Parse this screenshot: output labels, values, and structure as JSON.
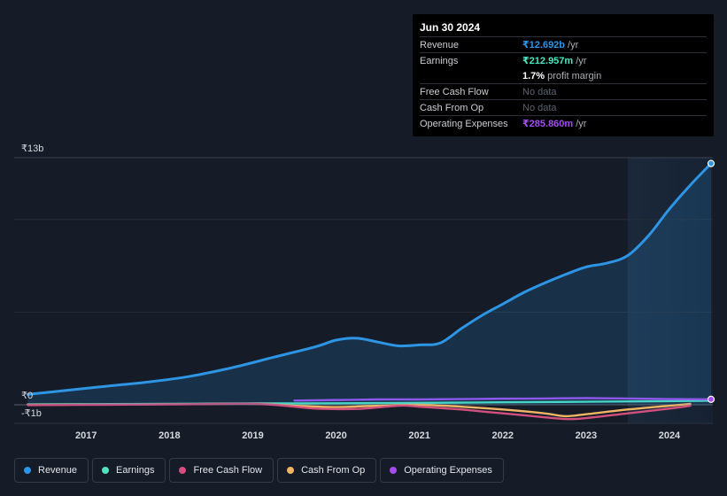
{
  "colors": {
    "revenue": "#2d95e4",
    "earnings": "#4fe3c1",
    "free_cash_flow": "#d24f7e",
    "cash_from_op": "#f0b465",
    "operating_expenses": "#a34cf0"
  },
  "tooltip": {
    "date": "Jun 30 2024",
    "rows": [
      {
        "label": "Revenue",
        "value": "₹12.692b",
        "unit": "/yr",
        "color": "#2d95e4"
      },
      {
        "label": "Earnings",
        "value": "₹212.957m",
        "unit": "/yr",
        "color": "#4fe3c1"
      },
      {
        "label": "",
        "value": "1.7%",
        "unit": "profit margin",
        "color": "#ffffff"
      },
      {
        "label": "Free Cash Flow",
        "value": "No data",
        "unit": "",
        "nodata": true
      },
      {
        "label": "Cash From Op",
        "value": "No data",
        "unit": "",
        "nodata": true
      },
      {
        "label": "Operating Expenses",
        "value": "₹285.860m",
        "unit": "/yr",
        "color": "#a34cf0"
      }
    ]
  },
  "chart_data": {
    "type": "area",
    "ylim": [
      -1,
      13
    ],
    "y_tick_labels": [
      {
        "value": 13,
        "label": "₹13b"
      },
      {
        "value": 0,
        "label": "₹0"
      },
      {
        "value": -1,
        "label": "-₹1b"
      }
    ],
    "x_tick_labels": [
      {
        "value": 2017,
        "label": "2017"
      },
      {
        "value": 2018,
        "label": "2018"
      },
      {
        "value": 2019,
        "label": "2019"
      },
      {
        "value": 2020,
        "label": "2020"
      },
      {
        "value": 2021,
        "label": "2021"
      },
      {
        "value": 2022,
        "label": "2022"
      },
      {
        "value": 2023,
        "label": "2023"
      },
      {
        "value": 2024,
        "label": "2024"
      }
    ],
    "xlim": [
      2016.2,
      2024.5
    ],
    "highlight_start": 2023.5,
    "series": [
      {
        "name": "Revenue",
        "key": "revenue",
        "filled": true,
        "points": [
          [
            2016.3,
            0.55
          ],
          [
            2016.75,
            0.75
          ],
          [
            2017.25,
            0.98
          ],
          [
            2017.75,
            1.2
          ],
          [
            2018.25,
            1.5
          ],
          [
            2018.75,
            1.95
          ],
          [
            2019.25,
            2.5
          ],
          [
            2019.75,
            3.05
          ],
          [
            2020.0,
            3.4
          ],
          [
            2020.25,
            3.5
          ],
          [
            2020.5,
            3.3
          ],
          [
            2020.75,
            3.1
          ],
          [
            2021.0,
            3.15
          ],
          [
            2021.25,
            3.25
          ],
          [
            2021.5,
            4.0
          ],
          [
            2021.75,
            4.7
          ],
          [
            2022.0,
            5.3
          ],
          [
            2022.25,
            5.9
          ],
          [
            2022.5,
            6.4
          ],
          [
            2022.75,
            6.85
          ],
          [
            2023.0,
            7.25
          ],
          [
            2023.25,
            7.45
          ],
          [
            2023.5,
            7.85
          ],
          [
            2023.75,
            8.9
          ],
          [
            2024.0,
            10.3
          ],
          [
            2024.25,
            11.55
          ],
          [
            2024.5,
            12.692
          ]
        ]
      },
      {
        "name": "Earnings",
        "key": "earnings",
        "filled": false,
        "points": [
          [
            2016.3,
            0.02
          ],
          [
            2017.0,
            0.03
          ],
          [
            2018.0,
            0.05
          ],
          [
            2019.0,
            0.07
          ],
          [
            2020.0,
            0.08
          ],
          [
            2021.0,
            0.1
          ],
          [
            2022.0,
            0.13
          ],
          [
            2023.0,
            0.16
          ],
          [
            2024.0,
            0.19
          ],
          [
            2024.5,
            0.213
          ]
        ]
      },
      {
        "name": "Free Cash Flow",
        "key": "free_cash_flow",
        "filled": false,
        "points": [
          [
            2016.3,
            -0.02
          ],
          [
            2017.0,
            0.0
          ],
          [
            2018.0,
            0.02
          ],
          [
            2019.0,
            0.05
          ],
          [
            2019.5,
            -0.1
          ],
          [
            2019.75,
            -0.2
          ],
          [
            2020.25,
            -0.22
          ],
          [
            2020.75,
            -0.05
          ],
          [
            2021.0,
            -0.1
          ],
          [
            2021.5,
            -0.25
          ],
          [
            2021.75,
            -0.35
          ],
          [
            2022.25,
            -0.55
          ],
          [
            2022.75,
            -0.75
          ],
          [
            2023.0,
            -0.7
          ],
          [
            2023.5,
            -0.45
          ],
          [
            2024.0,
            -0.2
          ],
          [
            2024.25,
            -0.05
          ]
        ]
      },
      {
        "name": "Cash From Op",
        "key": "cash_from_op",
        "filled": false,
        "points": [
          [
            2016.3,
            0.0
          ],
          [
            2017.0,
            0.01
          ],
          [
            2018.0,
            0.03
          ],
          [
            2019.0,
            0.06
          ],
          [
            2019.5,
            -0.05
          ],
          [
            2020.0,
            -0.12
          ],
          [
            2020.5,
            -0.05
          ],
          [
            2021.0,
            0.0
          ],
          [
            2021.5,
            -0.1
          ],
          [
            2022.0,
            -0.25
          ],
          [
            2022.5,
            -0.45
          ],
          [
            2022.75,
            -0.6
          ],
          [
            2023.0,
            -0.5
          ],
          [
            2023.5,
            -0.25
          ],
          [
            2024.0,
            -0.05
          ],
          [
            2024.25,
            0.05
          ]
        ]
      },
      {
        "name": "Operating Expenses",
        "key": "operating_expenses",
        "filled": false,
        "points": [
          [
            2019.5,
            0.22
          ],
          [
            2020.0,
            0.25
          ],
          [
            2020.5,
            0.28
          ],
          [
            2021.0,
            0.28
          ],
          [
            2021.5,
            0.3
          ],
          [
            2022.0,
            0.32
          ],
          [
            2022.5,
            0.33
          ],
          [
            2023.0,
            0.35
          ],
          [
            2023.5,
            0.33
          ],
          [
            2024.0,
            0.3
          ],
          [
            2024.5,
            0.286
          ]
        ]
      }
    ],
    "legend": [
      {
        "name": "Revenue",
        "key": "revenue"
      },
      {
        "name": "Earnings",
        "key": "earnings"
      },
      {
        "name": "Free Cash Flow",
        "key": "free_cash_flow"
      },
      {
        "name": "Cash From Op",
        "key": "cash_from_op"
      },
      {
        "name": "Operating Expenses",
        "key": "operating_expenses"
      }
    ]
  }
}
